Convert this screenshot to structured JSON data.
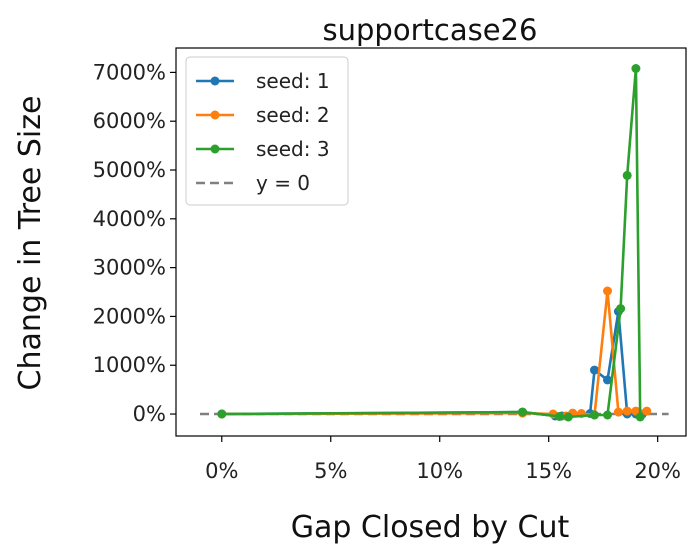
{
  "chart_data": {
    "type": "line",
    "title": "supportcase26",
    "xlabel": "Gap Closed by Cut",
    "ylabel": "Change in Tree Size",
    "xlim": [
      -2.1,
      21.3
    ],
    "ylim": [
      -450,
      7500
    ],
    "x_ticks": [
      0,
      5,
      10,
      15,
      20
    ],
    "x_tick_labels": [
      "0%",
      "5%",
      "10%",
      "15%",
      "20%"
    ],
    "y_ticks": [
      0,
      1000,
      2000,
      3000,
      4000,
      5000,
      6000,
      7000
    ],
    "y_tick_labels": [
      "0%",
      "1000%",
      "2000%",
      "3000%",
      "4000%",
      "5000%",
      "6000%",
      "7000%"
    ],
    "grid": false,
    "legend_position": "top-left",
    "series": [
      {
        "name": "seed: 1",
        "color": "#1f77b4",
        "points": [
          [
            0.0,
            0
          ],
          [
            13.8,
            40
          ],
          [
            15.3,
            -40
          ],
          [
            15.6,
            -40
          ],
          [
            16.9,
            10
          ],
          [
            17.1,
            900
          ],
          [
            17.7,
            700
          ],
          [
            18.2,
            2100
          ],
          [
            18.6,
            0
          ],
          [
            19.0,
            0
          ],
          [
            19.3,
            0
          ]
        ]
      },
      {
        "name": "seed: 2",
        "color": "#ff7f0e",
        "points": [
          [
            0.0,
            0
          ],
          [
            13.8,
            20
          ],
          [
            15.2,
            0
          ],
          [
            15.8,
            -40
          ],
          [
            16.1,
            20
          ],
          [
            16.5,
            10
          ],
          [
            17.1,
            -20
          ],
          [
            17.7,
            2520
          ],
          [
            18.2,
            40
          ],
          [
            18.6,
            60
          ],
          [
            19.0,
            60
          ],
          [
            19.5,
            60
          ]
        ]
      },
      {
        "name": "seed: 3",
        "color": "#2ca02c",
        "points": [
          [
            0.0,
            0
          ],
          [
            13.8,
            40
          ],
          [
            15.5,
            -50
          ],
          [
            15.9,
            -60
          ],
          [
            17.1,
            -20
          ],
          [
            17.7,
            -20
          ],
          [
            18.3,
            2160
          ],
          [
            18.6,
            4890
          ],
          [
            19.0,
            7080
          ],
          [
            19.2,
            -60
          ]
        ]
      },
      {
        "name": "y = 0",
        "color": "#808080",
        "dashed": true,
        "points": [
          [
            -1.0,
            0
          ],
          [
            20.5,
            0
          ]
        ]
      }
    ]
  }
}
